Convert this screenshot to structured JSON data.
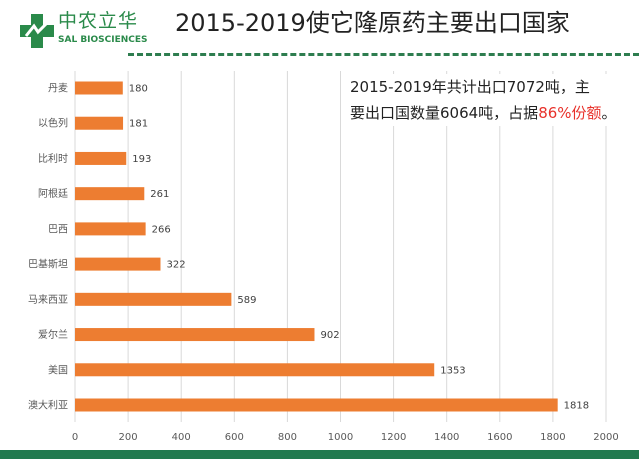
{
  "header": {
    "title": "2015-2019使它隆原药主要出口国家",
    "logo_cn": "中农立华",
    "logo_en": "SAL BIOSCIENCES"
  },
  "note": {
    "line1": "2015-2019年共计出口7072吨，主",
    "line2a": "要出口国数量6064吨，占据",
    "line2b": "86%份额",
    "line2c": "。"
  },
  "chart_data": {
    "type": "bar",
    "orientation": "horizontal",
    "categories": [
      "丹麦",
      "以色列",
      "比利时",
      "阿根廷",
      "巴西",
      "巴基斯坦",
      "马来西亚",
      "爱尔兰",
      "美国",
      "澳大利亚"
    ],
    "values": [
      180,
      181,
      193,
      261,
      266,
      322,
      589,
      902,
      1353,
      1818
    ],
    "xlim": [
      0,
      2000
    ],
    "xticks": [
      0,
      200,
      400,
      600,
      800,
      1000,
      1200,
      1400,
      1600,
      1800,
      2000
    ],
    "grid": true,
    "bar_color": "#ed7d31",
    "data_labels": true
  },
  "colors": {
    "brand_green": "#217a4f",
    "highlight": "#e8322b"
  }
}
